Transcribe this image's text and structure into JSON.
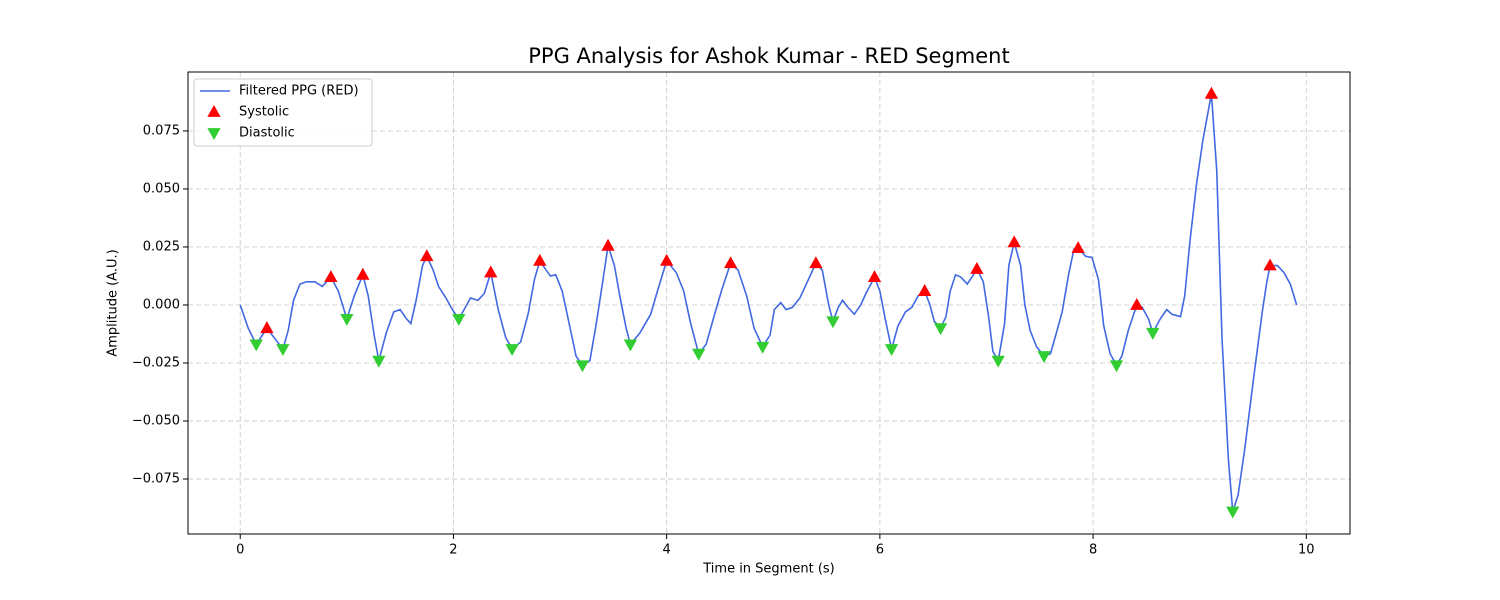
{
  "chart_data": {
    "type": "line",
    "title": "PPG Analysis for Ashok Kumar - RED Segment",
    "xlabel": "Time in Segment (s)",
    "ylabel": "Amplitude (A.U.)",
    "xlim": [
      -0.49,
      10.41
    ],
    "ylim": [
      -0.0987,
      0.1004
    ],
    "xticks": [
      0,
      2,
      4,
      6,
      8,
      10
    ],
    "yticks": [
      {
        "value": -0.075,
        "label": "−0.075"
      },
      {
        "value": -0.05,
        "label": "−0.050"
      },
      {
        "value": -0.025,
        "label": "−0.025"
      },
      {
        "value": 0,
        "label": "0.000"
      },
      {
        "value": 0.025,
        "label": "0.025"
      },
      {
        "value": 0.05,
        "label": "0.050"
      },
      {
        "value": 0.075,
        "label": "0.075"
      }
    ],
    "grid": true,
    "legend": "upper left",
    "series": [
      {
        "name": "Filtered PPG (RED)",
        "color": "#4169e1",
        "kind": "line",
        "x": [
          0,
          0.075,
          0.15,
          0.25,
          0.4,
          0.45,
          0.5,
          0.56,
          0.62,
          0.7,
          0.77,
          0.85,
          0.92,
          1.0,
          1.07,
          1.15,
          1.2,
          1.26,
          1.3,
          1.37,
          1.44,
          1.5,
          1.56,
          1.6,
          1.65,
          1.71,
          1.75,
          1.81,
          1.86,
          1.93,
          1.99,
          2.05,
          2.1,
          2.16,
          2.23,
          2.29,
          2.35,
          2.42,
          2.49,
          2.55,
          2.63,
          2.7,
          2.76,
          2.81,
          2.87,
          2.91,
          2.96,
          3.02,
          3.09,
          3.15,
          3.21,
          3.28,
          3.34,
          3.4,
          3.45,
          3.51,
          3.56,
          3.62,
          3.66,
          3.75,
          3.85,
          3.92,
          4.0,
          4.09,
          4.16,
          4.22,
          4.3,
          4.37,
          4.45,
          4.52,
          4.6,
          4.67,
          4.75,
          4.82,
          4.9,
          4.97,
          5.01,
          5.07,
          5.12,
          5.18,
          5.25,
          5.33,
          5.4,
          5.46,
          5.52,
          5.56,
          5.61,
          5.65,
          5.7,
          5.76,
          5.82,
          5.87,
          5.95,
          6.0,
          6.05,
          6.11,
          6.17,
          6.24,
          6.3,
          6.36,
          6.42,
          6.47,
          6.51,
          6.57,
          6.62,
          6.66,
          6.71,
          6.76,
          6.82,
          6.87,
          6.91,
          6.97,
          7.02,
          7.06,
          7.11,
          7.17,
          7.21,
          7.26,
          7.32,
          7.36,
          7.41,
          7.47,
          7.54,
          7.6,
          7.65,
          7.71,
          7.77,
          7.82,
          7.86,
          7.93,
          7.99,
          8.05,
          8.1,
          8.16,
          8.22,
          8.27,
          8.33,
          8.41,
          8.46,
          8.52,
          8.56,
          8.63,
          8.69,
          8.74,
          8.82,
          8.86,
          8.91,
          8.97,
          9.03,
          9.11,
          9.16,
          9.21,
          9.27,
          9.31,
          9.36,
          9.42,
          9.51,
          9.59,
          9.63,
          9.66,
          9.73,
          9.79,
          9.85,
          9.91
        ],
        "values": [
          0,
          -0.01,
          -0.017,
          -0.01,
          -0.019,
          -0.011,
          0.002,
          0.009,
          0.01,
          0.01,
          0.008,
          0.012,
          0.006,
          -0.006,
          0.004,
          0.013,
          0.004,
          -0.014,
          -0.024,
          -0.012,
          -0.003,
          -0.002,
          -0.006,
          -0.008,
          0.002,
          0.017,
          0.021,
          0.015,
          0.008,
          0.003,
          -0.002,
          -0.006,
          -0.002,
          0.003,
          0.002,
          0.005,
          0.014,
          -0.002,
          -0.014,
          -0.019,
          -0.016,
          -0.004,
          0.011,
          0.019,
          0.015,
          0.0125,
          0.013,
          0.006,
          -0.009,
          -0.022,
          -0.026,
          -0.024,
          -0.008,
          0.01,
          0.0255,
          0.017,
          0.004,
          -0.01,
          -0.017,
          -0.012,
          -0.004,
          0.007,
          0.019,
          0.014,
          0.006,
          -0.007,
          -0.021,
          -0.017,
          -0.004,
          0.007,
          0.018,
          0.015,
          0.004,
          -0.01,
          -0.018,
          -0.013,
          -0.002,
          0.001,
          -0.002,
          -0.001,
          0.003,
          0.011,
          0.018,
          0.015,
          0,
          -0.007,
          -0.001,
          0.002,
          -0.001,
          -0.004,
          0,
          0.005,
          0.012,
          0.006,
          -0.006,
          -0.019,
          -0.009,
          -0.003,
          -0.001,
          0.004,
          0.006,
          0,
          -0.007,
          -0.01,
          -0.005,
          0.006,
          0.013,
          0.012,
          0.009,
          0.0125,
          0.0155,
          0.01,
          -0.005,
          -0.02,
          -0.024,
          -0.008,
          0.017,
          0.027,
          0.017,
          0,
          -0.011,
          -0.018,
          -0.022,
          -0.021,
          -0.013,
          -0.003,
          0.013,
          0.024,
          0.0245,
          0.021,
          0.0205,
          0.011,
          -0.009,
          -0.021,
          -0.026,
          -0.022,
          -0.011,
          0,
          -0.001,
          -0.006,
          -0.012,
          -0.006,
          -0.002,
          -0.004,
          -0.005,
          0.004,
          0.028,
          0.052,
          0.071,
          0.091,
          0.058,
          -0.015,
          -0.067,
          -0.089,
          -0.082,
          -0.063,
          -0.03,
          -0.002,
          0.01,
          0.017,
          0.017,
          0.014,
          0.009,
          0
        ]
      },
      {
        "name": "Systolic",
        "color": "#ff0000",
        "kind": "scatter",
        "marker": "triangle-up",
        "x": [
          0.25,
          0.85,
          1.15,
          1.75,
          2.35,
          2.81,
          3.45,
          4.0,
          4.6,
          5.4,
          5.95,
          6.42,
          6.91,
          7.26,
          7.86,
          8.41,
          9.11,
          9.66
        ],
        "values": [
          -0.01,
          0.012,
          0.013,
          0.021,
          0.014,
          0.019,
          0.0255,
          0.019,
          0.018,
          0.018,
          0.012,
          0.006,
          0.0155,
          0.027,
          0.0245,
          0,
          0.091,
          0.017
        ]
      },
      {
        "name": "Diastolic",
        "color": "#32cd32",
        "kind": "scatter",
        "marker": "triangle-down",
        "x": [
          0.15,
          0.4,
          1.0,
          1.3,
          2.05,
          2.55,
          3.21,
          3.66,
          4.3,
          4.9,
          5.56,
          6.11,
          6.57,
          7.11,
          7.54,
          8.22,
          8.56,
          9.31
        ],
        "values": [
          -0.017,
          -0.019,
          -0.006,
          -0.024,
          -0.006,
          -0.019,
          -0.026,
          -0.017,
          -0.021,
          -0.018,
          -0.007,
          -0.019,
          -0.01,
          -0.024,
          -0.022,
          -0.026,
          -0.012,
          -0.089
        ]
      }
    ]
  }
}
